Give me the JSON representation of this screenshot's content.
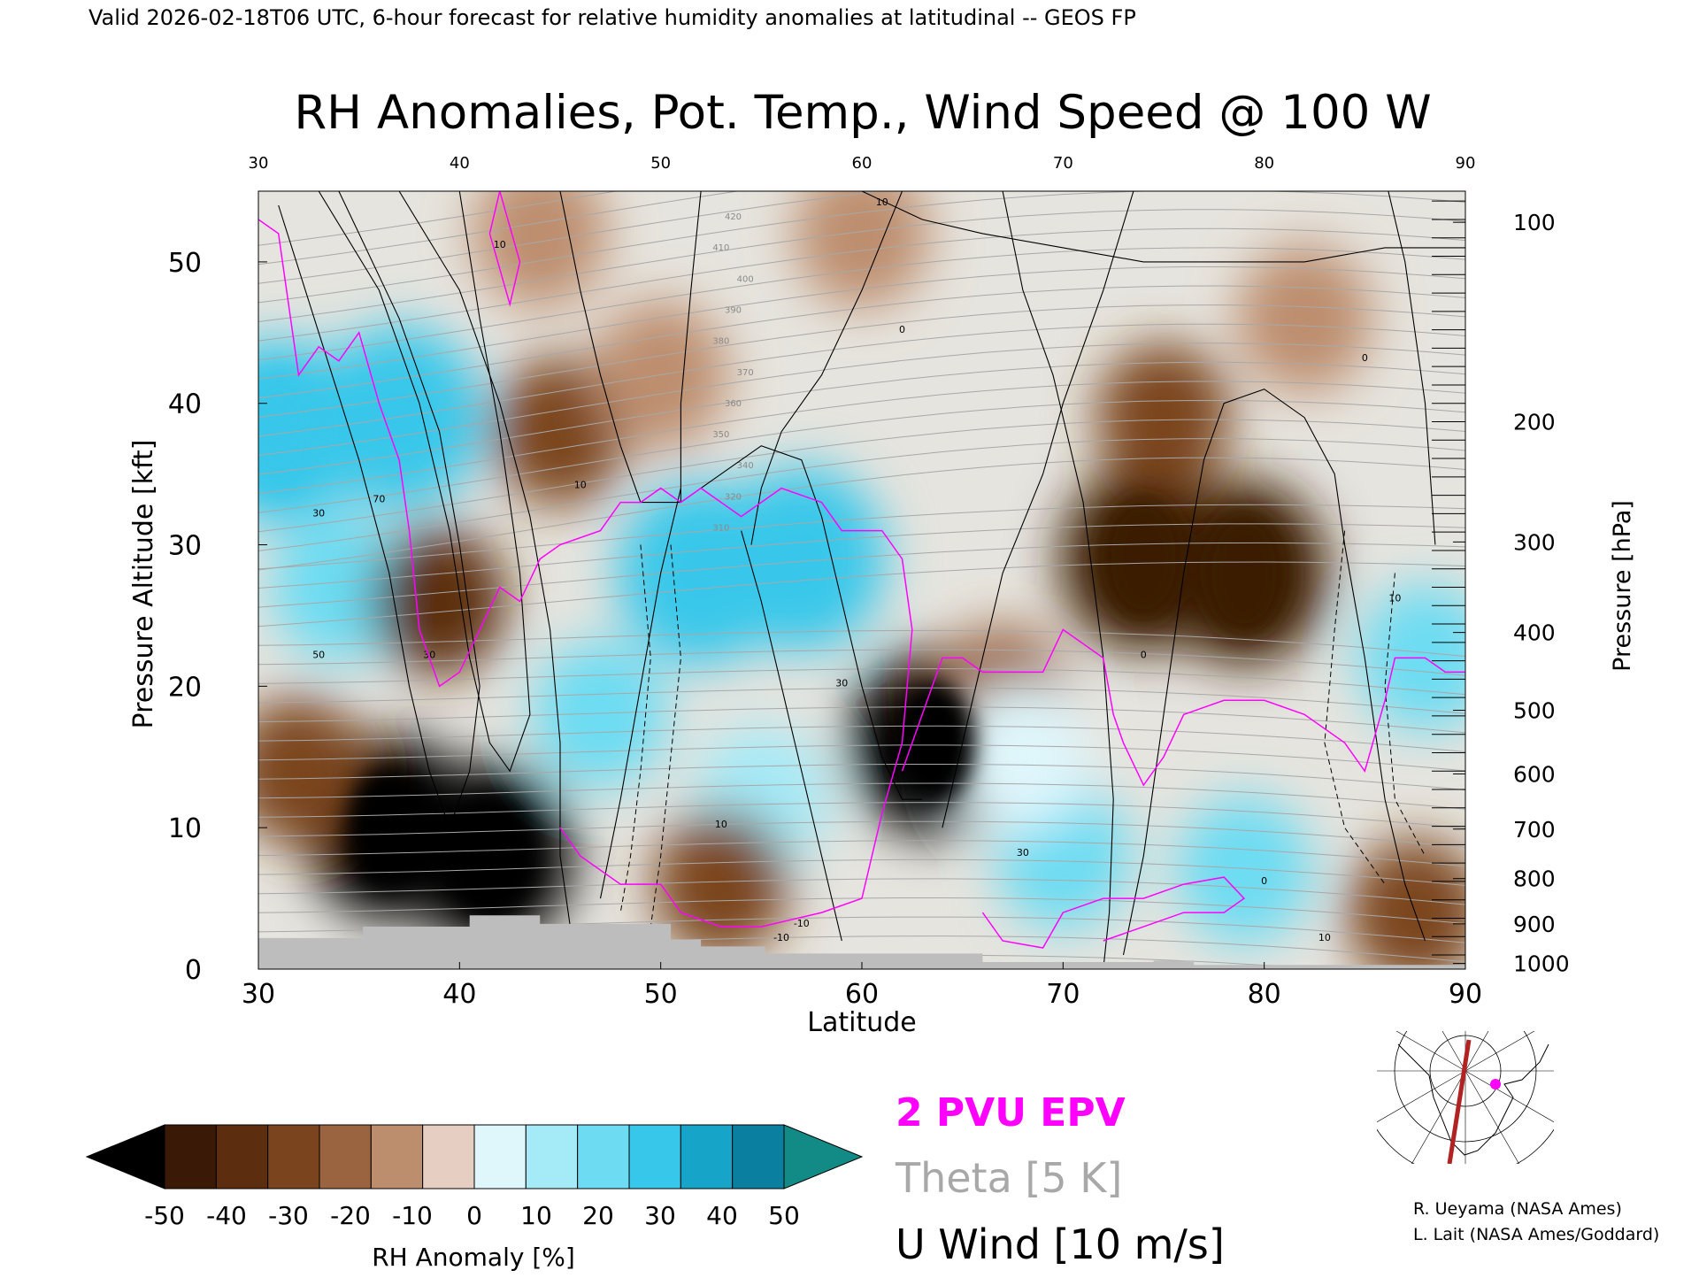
{
  "header_text": "Valid 2026-02-18T06 UTC, 6-hour forecast for relative humidity anomalies at latitudinal -- GEOS FP",
  "chart_data": {
    "type": "heatmap",
    "title": "RH Anomalies, Pot. Temp., Wind Speed @ 100 W",
    "xlabel": "Latitude",
    "ylabel_left": "Pressure Altitude [kft]",
    "ylabel_right": "Pressure [hPa]",
    "xlim": [
      30,
      90
    ],
    "ylim": [
      0,
      55
    ],
    "grid": false,
    "x_ticks": [
      "30",
      "40",
      "50",
      "60",
      "70",
      "80",
      "90"
    ],
    "y_ticks_left": [
      "0",
      "10",
      "20",
      "30",
      "40",
      "50"
    ],
    "y_ticks_right": [
      {
        "label": "100",
        "kft": 52.8
      },
      {
        "label": "200",
        "kft": 38.7
      },
      {
        "label": "300",
        "kft": 30.2
      },
      {
        "label": "400",
        "kft": 23.8
      },
      {
        "label": "500",
        "kft": 18.3
      },
      {
        "label": "600",
        "kft": 13.8
      },
      {
        "label": "700",
        "kft": 9.9
      },
      {
        "label": "800",
        "kft": 6.4
      },
      {
        "label": "900",
        "kft": 3.2
      },
      {
        "label": "1000",
        "kft": 0.4
      }
    ],
    "colorbar": {
      "label": "RH Anomaly [%]",
      "ticks": [
        "-50",
        "-40",
        "-30",
        "-20",
        "-10",
        "0",
        "10",
        "20",
        "30",
        "40",
        "50"
      ],
      "colors": [
        "#000000",
        "#3a1a06",
        "#5c2d0e",
        "#7a441f",
        "#9a6440",
        "#bd8e6e",
        "#e6cfc2",
        "#dff6fb",
        "#a5eaf7",
        "#6ddcf2",
        "#37c7ea",
        "#16a4c9",
        "#0b7f9f",
        "#128a85"
      ]
    },
    "rh_regions": [
      {
        "lat": 31,
        "kft": 38,
        "rh": 45
      },
      {
        "lat": 34,
        "kft": 27,
        "rh": 30
      },
      {
        "lat": 37,
        "kft": 39,
        "rh": 40
      },
      {
        "lat": 36.5,
        "kft": 10,
        "rh": -55
      },
      {
        "lat": 41.5,
        "kft": 8,
        "rh": -55
      },
      {
        "lat": 39,
        "kft": 26,
        "rh": -35
      },
      {
        "lat": 32,
        "kft": 14,
        "rh": -30
      },
      {
        "lat": 45,
        "kft": 38,
        "rh": -25
      },
      {
        "lat": 50,
        "kft": 42,
        "rh": -10
      },
      {
        "lat": 47,
        "kft": 18,
        "rh": 35
      },
      {
        "lat": 52,
        "kft": 28,
        "rh": 42
      },
      {
        "lat": 57,
        "kft": 29,
        "rh": 42
      },
      {
        "lat": 55,
        "kft": 12,
        "rh": 28
      },
      {
        "lat": 53,
        "kft": 6,
        "rh": -30
      },
      {
        "lat": 63.5,
        "kft": 16,
        "rh": -55
      },
      {
        "lat": 67,
        "kft": 19,
        "rh": -15
      },
      {
        "lat": 74,
        "kft": 29,
        "rh": -45
      },
      {
        "lat": 79,
        "kft": 28,
        "rh": -45
      },
      {
        "lat": 75,
        "kft": 39,
        "rh": -30
      },
      {
        "lat": 70,
        "kft": 8,
        "rh": 30
      },
      {
        "lat": 79,
        "kft": 7,
        "rh": 30
      },
      {
        "lat": 68,
        "kft": 15,
        "rh": 15
      },
      {
        "lat": 88,
        "kft": 22,
        "rh": 35
      },
      {
        "lat": 87.5,
        "kft": 4,
        "rh": -25
      },
      {
        "lat": 60,
        "kft": 52,
        "rh": -3
      },
      {
        "lat": 44,
        "kft": 52,
        "rh": -8
      },
      {
        "lat": 82,
        "kft": 46,
        "rh": -10
      }
    ],
    "theta_label_values": [
      "310",
      "320",
      "340",
      "350",
      "360",
      "370",
      "380",
      "390",
      "400",
      "410",
      "420"
    ],
    "epv_2pvu_line": [
      [
        30,
        53
      ],
      [
        31,
        52
      ],
      [
        32,
        42
      ],
      [
        33,
        44
      ],
      [
        34,
        43
      ],
      [
        35,
        45
      ],
      [
        36,
        40
      ],
      [
        37,
        36
      ],
      [
        37.5,
        31
      ],
      [
        38,
        24
      ],
      [
        39,
        20
      ],
      [
        40,
        21
      ],
      [
        41,
        24
      ],
      [
        42,
        27
      ],
      [
        43,
        26
      ],
      [
        44,
        29
      ],
      [
        45,
        30
      ],
      [
        47,
        31
      ],
      [
        48,
        33
      ],
      [
        49,
        33
      ],
      [
        50,
        34
      ],
      [
        51,
        33
      ],
      [
        52,
        34
      ],
      [
        54,
        32
      ],
      [
        56,
        34
      ],
      [
        58,
        33
      ],
      [
        59,
        31
      ],
      [
        60,
        31
      ],
      [
        61,
        31
      ],
      [
        62,
        29
      ],
      [
        62.5,
        24
      ],
      [
        62,
        16
      ],
      [
        61,
        11
      ],
      [
        60,
        5
      ],
      [
        58,
        4
      ],
      [
        55,
        3
      ],
      [
        53,
        3
      ],
      [
        51,
        4
      ],
      [
        50,
        6
      ],
      [
        48,
        6
      ],
      [
        46,
        8
      ],
      [
        45,
        10
      ]
    ],
    "u_wind_labels": [
      "10",
      "10",
      "30",
      "50",
      "70",
      "30",
      "10",
      "0",
      "-10",
      "30",
      "10",
      "10",
      "0",
      "10",
      "0",
      "0",
      "10",
      "-10",
      "30"
    ],
    "legend": [
      "2 PVU EPV",
      "Theta [5 K]",
      "U Wind [10 m/s]"
    ],
    "legend_colors": {
      "epv": "#ff00ff",
      "theta": "#a8a8a8",
      "u_wind": "#000000"
    },
    "credits": [
      "R. Ueyama (NASA Ames)",
      "L. Lait (NASA Ames/Goddard)"
    ],
    "inset_map": {
      "projection": "polar-stereographic",
      "section_longitude": "100 W",
      "line_color": "#b22222",
      "marker_color": "#ff00ff"
    }
  }
}
